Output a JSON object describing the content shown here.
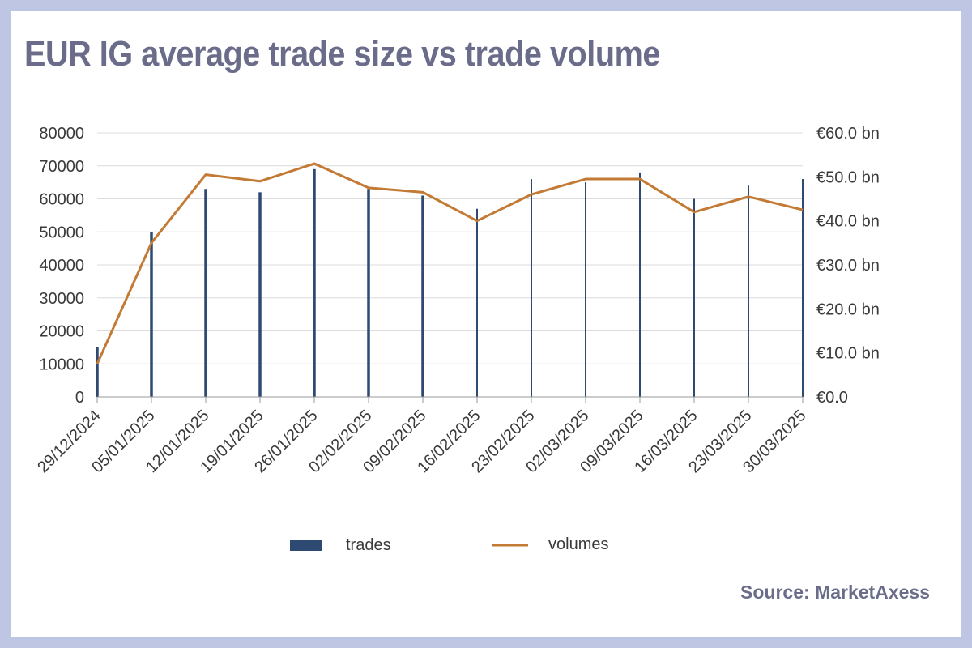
{
  "title": "EUR IG average trade size vs trade volume",
  "source": "Source: MarketAxess",
  "colors": {
    "background_frame": "#bfc6e3",
    "title": "#6a6c8a",
    "trades": "#2e4a72",
    "volumes": "#c27a35",
    "grid": "#dcdcdc"
  },
  "legend": {
    "trades": "trades",
    "volumes": "volumes",
    "placement": "bottom"
  },
  "chart_data": {
    "type": "bar+line",
    "title": "EUR IG average trade size vs trade volume",
    "categories": [
      "29/12/2024",
      "05/01/2025",
      "12/01/2025",
      "19/01/2025",
      "26/01/2025",
      "02/02/2025",
      "09/02/2025",
      "16/02/2025",
      "23/02/2025",
      "02/03/2025",
      "09/03/2025",
      "16/03/2025",
      "23/03/2025",
      "30/03/2025"
    ],
    "left_axis": {
      "min": 0,
      "max": 80000,
      "ticks": [
        "0",
        "10000",
        "20000",
        "30000",
        "40000",
        "50000",
        "60000",
        "70000",
        "80000"
      ]
    },
    "right_axis": {
      "min": 0,
      "max": 60,
      "ticks": [
        "€0.0",
        "€10.0 bn",
        "€20.0 bn",
        "€30.0 bn",
        "€40.0 bn",
        "€50.0 bn",
        "€60.0 bn"
      ]
    },
    "grid": true,
    "series": [
      {
        "name": "trades",
        "type": "bar",
        "axis": "left",
        "values": [
          15000,
          50000,
          63000,
          62000,
          69000,
          63000,
          61000,
          57000,
          66000,
          65000,
          68000,
          60000,
          64000,
          66000
        ]
      },
      {
        "name": "volumes",
        "type": "line",
        "axis": "right",
        "values": [
          7.5,
          35,
          50.5,
          49,
          53,
          47.5,
          46.5,
          40,
          46,
          49.5,
          49.5,
          42,
          45.5,
          42.5
        ]
      }
    ]
  }
}
